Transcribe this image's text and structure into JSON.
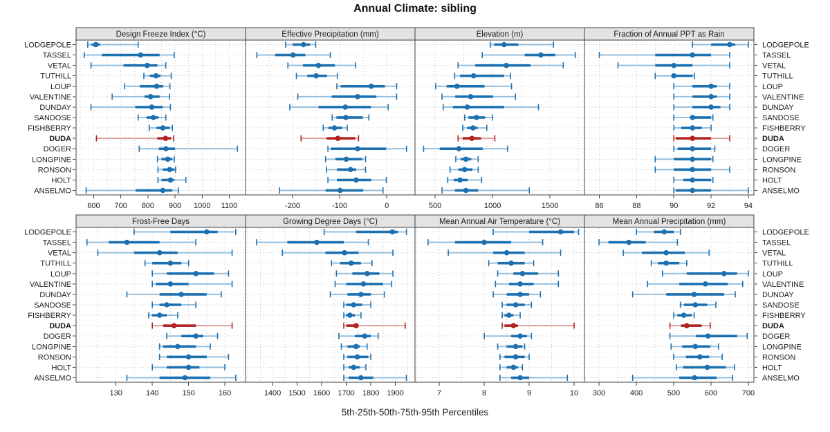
{
  "chart_data": {
    "type": "dotplot",
    "title": "Annual Climate: sibling",
    "caption": "5th-25th-50th-75th-95th Percentiles",
    "values_format": "[p5, p25, p50, p75, p95] per station",
    "stations": [
      "LODGEPOLE",
      "TASSEL",
      "VETAL",
      "TUTHILL",
      "LOUP",
      "VALENTINE",
      "DUNDAY",
      "SANDOSE",
      "FISHBERRY",
      "DUDA",
      "DOGER",
      "LONGPINE",
      "RONSON",
      "HOLT",
      "ANSELMO"
    ],
    "highlight_station": "DUDA",
    "layout": {
      "rows": 2,
      "cols": 4,
      "grid": "dotted",
      "legend": "none"
    },
    "colors": {
      "series": "#1c70b0",
      "series_light": "#96bedd",
      "highlight": "#b22222",
      "highlight_light": "#dca0a0",
      "grid": "#c4c4c4",
      "strip_bg": "#e3e3e3",
      "border": "#3f3f3f",
      "text": "#1b1b1b"
    },
    "panels": [
      {
        "label": "Design Freeze Index (°C)",
        "row": 0,
        "col": 0,
        "xlim": [
          535,
          1160
        ],
        "ticks": [
          600,
          700,
          800,
          900,
          1000,
          1100
        ],
        "grid_step": 50,
        "values": [
          [
            578,
            592,
            608,
            623,
            764
          ],
          [
            565,
            630,
            773,
            843,
            897
          ],
          [
            590,
            710,
            797,
            835,
            866
          ],
          [
            785,
            807,
            830,
            846,
            886
          ],
          [
            714,
            770,
            832,
            856,
            881
          ],
          [
            668,
            788,
            810,
            843,
            880
          ],
          [
            590,
            753,
            814,
            854,
            883
          ],
          [
            764,
            795,
            820,
            839,
            866
          ],
          [
            805,
            832,
            855,
            880,
            890
          ],
          [
            610,
            835,
            865,
            885,
            895
          ],
          [
            768,
            840,
            866,
            900,
            1130
          ],
          [
            835,
            850,
            873,
            890,
            897
          ],
          [
            837,
            855,
            880,
            898,
            902
          ],
          [
            837,
            850,
            883,
            897,
            940
          ],
          [
            572,
            755,
            855,
            890,
            912
          ]
        ]
      },
      {
        "label": "Effective Precipitation (mm)",
        "row": 0,
        "col": 1,
        "xlim": [
          -300,
          60
        ],
        "ticks": [
          -200,
          -100,
          0
        ],
        "grid_step": 50,
        "values": [
          [
            -215,
            -200,
            -177,
            -163,
            -151
          ],
          [
            -276,
            -237,
            -199,
            -173,
            -120
          ],
          [
            -210,
            -178,
            -145,
            -110,
            -66
          ],
          [
            -192,
            -169,
            -150,
            -127,
            -105
          ],
          [
            -106,
            -98,
            -33,
            -4,
            21
          ],
          [
            -189,
            -117,
            -62,
            -22,
            21
          ],
          [
            -206,
            -145,
            -88,
            -34,
            3
          ],
          [
            -116,
            -107,
            -87,
            -51,
            -38
          ],
          [
            -135,
            -124,
            -111,
            -95,
            -84
          ],
          [
            -182,
            -128,
            -104,
            -67,
            -60
          ],
          [
            -125,
            -119,
            -62,
            -1,
            42
          ],
          [
            -130,
            -109,
            -86,
            -52,
            -45
          ],
          [
            -128,
            -106,
            -77,
            -65,
            -45
          ],
          [
            -125,
            -106,
            -65,
            -33,
            -1
          ],
          [
            -228,
            -130,
            -99,
            -50,
            -8
          ]
        ]
      },
      {
        "label": "Elevation (m)",
        "row": 0,
        "col": 2,
        "xlim": [
          325,
          1800
        ],
        "ticks": [
          500,
          1000,
          1500
        ],
        "grid_step": 250,
        "values": [
          [
            980,
            1015,
            1100,
            1225,
            1530
          ],
          [
            910,
            1280,
            1420,
            1545,
            1720
          ],
          [
            700,
            850,
            1120,
            1330,
            1615
          ],
          [
            670,
            717,
            835,
            1100,
            1155
          ],
          [
            505,
            600,
            690,
            930,
            1165
          ],
          [
            560,
            675,
            810,
            1005,
            1200
          ],
          [
            570,
            655,
            780,
            1100,
            1400
          ],
          [
            757,
            790,
            860,
            935,
            1000
          ],
          [
            740,
            780,
            830,
            870,
            950
          ],
          [
            700,
            740,
            820,
            900,
            1020
          ],
          [
            400,
            540,
            707,
            915,
            1130
          ],
          [
            680,
            723,
            768,
            815,
            875
          ],
          [
            630,
            703,
            757,
            825,
            875
          ],
          [
            610,
            662,
            717,
            785,
            905
          ],
          [
            560,
            672,
            768,
            875,
            1320
          ]
        ]
      },
      {
        "label": "Fraction of Annual PPT as Rain",
        "row": 0,
        "col": 3,
        "xlim": [
          85.2,
          94.3
        ],
        "ticks": [
          86,
          88,
          90,
          92,
          94
        ],
        "grid_step": 1,
        "values": [
          [
            91,
            92,
            93,
            93.3,
            94
          ],
          [
            86,
            89,
            91,
            92,
            93
          ],
          [
            87,
            89,
            90,
            91,
            93
          ],
          [
            89,
            89.9,
            90,
            91,
            91.1
          ],
          [
            90,
            91,
            92,
            92.3,
            93
          ],
          [
            90,
            91,
            92,
            92.3,
            93
          ],
          [
            90,
            91,
            92,
            92.5,
            93
          ],
          [
            90,
            90.9,
            91,
            92,
            92.1
          ],
          [
            90,
            90.4,
            91,
            91.5,
            92
          ],
          [
            90,
            90.1,
            91,
            92,
            93
          ],
          [
            90,
            90.2,
            91,
            92,
            92.2
          ],
          [
            89,
            90,
            91,
            92,
            92.1
          ],
          [
            89,
            90,
            91,
            92,
            93
          ],
          [
            90,
            90.5,
            91,
            92,
            92.1
          ],
          [
            90,
            90.1,
            91,
            92,
            94
          ]
        ]
      },
      {
        "label": "Frost-Free Days",
        "row": 1,
        "col": 0,
        "xlim": [
          119,
          165.7
        ],
        "ticks": [
          130,
          140,
          150,
          160
        ],
        "grid_step": 5,
        "values": [
          [
            135,
            145,
            155,
            158,
            163
          ],
          [
            122,
            128,
            133,
            142,
            152
          ],
          [
            125,
            135,
            142,
            147,
            162
          ],
          [
            138,
            140,
            145,
            148,
            150
          ],
          [
            140,
            144,
            152,
            157,
            161
          ],
          [
            140,
            141,
            145,
            150,
            162
          ],
          [
            133,
            142,
            148,
            155,
            159
          ],
          [
            140,
            142,
            144,
            148,
            152
          ],
          [
            139,
            140,
            142,
            144,
            147
          ],
          [
            140,
            143,
            146,
            152,
            162
          ],
          [
            144,
            148,
            152,
            154,
            158
          ],
          [
            142,
            143,
            147,
            152,
            156
          ],
          [
            142,
            144,
            150,
            155,
            161
          ],
          [
            140,
            144,
            150,
            153,
            160
          ],
          [
            133,
            142,
            149,
            156,
            163
          ]
        ]
      },
      {
        "label": "Growing Degree Days (°C)",
        "row": 1,
        "col": 1,
        "xlim": [
          1290,
          1980
        ],
        "ticks": [
          1400,
          1500,
          1600,
          1700,
          1800,
          1900
        ],
        "grid_step": 50,
        "values": [
          [
            1610,
            1740,
            1888,
            1910,
            1945
          ],
          [
            1335,
            1460,
            1580,
            1690,
            1790
          ],
          [
            1440,
            1615,
            1693,
            1750,
            1890
          ],
          [
            1640,
            1675,
            1720,
            1760,
            1805
          ],
          [
            1660,
            1725,
            1785,
            1835,
            1890
          ],
          [
            1655,
            1700,
            1770,
            1850,
            1885
          ],
          [
            1635,
            1705,
            1760,
            1800,
            1855
          ],
          [
            1690,
            1700,
            1730,
            1765,
            1800
          ],
          [
            1690,
            1700,
            1715,
            1735,
            1760
          ],
          [
            1690,
            1700,
            1740,
            1750,
            1940
          ],
          [
            1670,
            1735,
            1775,
            1800,
            1830
          ],
          [
            1680,
            1705,
            1740,
            1755,
            1785
          ],
          [
            1690,
            1705,
            1745,
            1790,
            1800
          ],
          [
            1690,
            1710,
            1730,
            1755,
            1780
          ],
          [
            1690,
            1710,
            1760,
            1810,
            1945
          ]
        ]
      },
      {
        "label": "Mean Annual Air Temperature (°C)",
        "row": 1,
        "col": 2,
        "xlim": [
          6.46,
          10.23
        ],
        "ticks": [
          7,
          8,
          9,
          10
        ],
        "grid_step": 0.5,
        "values": [
          [
            8.2,
            9.0,
            9.7,
            10.0,
            10.1
          ],
          [
            6.75,
            7.35,
            8.0,
            8.6,
            9.3
          ],
          [
            7.2,
            8.2,
            8.5,
            8.9,
            9.7
          ],
          [
            8.1,
            8.3,
            8.6,
            8.9,
            9.1
          ],
          [
            8.3,
            8.65,
            8.85,
            9.2,
            9.65
          ],
          [
            8.25,
            8.55,
            8.8,
            9.1,
            9.65
          ],
          [
            8.2,
            8.5,
            8.8,
            9.0,
            9.25
          ],
          [
            8.4,
            8.5,
            8.7,
            8.9,
            9.05
          ],
          [
            8.4,
            8.45,
            8.55,
            8.65,
            8.8
          ],
          [
            8.4,
            8.45,
            8.65,
            8.75,
            10.0
          ],
          [
            8.0,
            8.6,
            8.8,
            8.95,
            9.05
          ],
          [
            8.3,
            8.5,
            8.7,
            8.85,
            8.9
          ],
          [
            8.35,
            8.45,
            8.7,
            8.9,
            9.0
          ],
          [
            8.35,
            8.5,
            8.65,
            8.75,
            8.85
          ],
          [
            8.35,
            8.6,
            8.8,
            9.0,
            9.85
          ]
        ]
      },
      {
        "label": "Mean Annual Precipitation (mm)",
        "row": 1,
        "col": 3,
        "xlim": [
          261,
          715
        ],
        "ticks": [
          300,
          400,
          500,
          600,
          700
        ],
        "grid_step": 50,
        "values": [
          [
            400,
            447,
            475,
            500,
            518
          ],
          [
            300,
            325,
            380,
            425,
            510
          ],
          [
            365,
            415,
            480,
            530,
            595
          ],
          [
            440,
            458,
            480,
            515,
            535
          ],
          [
            470,
            535,
            635,
            670,
            700
          ],
          [
            430,
            515,
            585,
            645,
            685
          ],
          [
            390,
            480,
            555,
            635,
            665
          ],
          [
            518,
            528,
            558,
            590,
            613
          ],
          [
            500,
            510,
            527,
            548,
            555
          ],
          [
            490,
            520,
            535,
            575,
            598
          ],
          [
            490,
            560,
            592,
            670,
            697
          ],
          [
            493,
            523,
            558,
            598,
            620
          ],
          [
            500,
            533,
            570,
            595,
            630
          ],
          [
            507,
            525,
            590,
            640,
            663
          ],
          [
            390,
            515,
            556,
            615,
            658
          ]
        ]
      }
    ]
  }
}
